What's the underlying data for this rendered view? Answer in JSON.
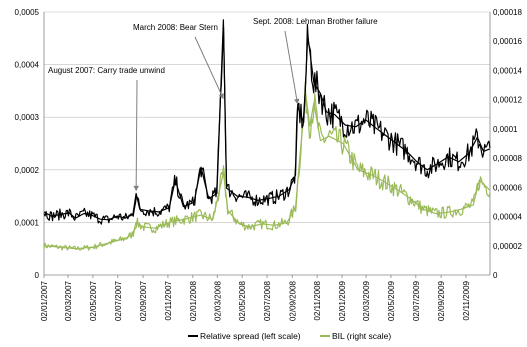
{
  "chart_data": {
    "type": "line",
    "x_format": "dd/mm/yyyy",
    "x_start": "2007-01-02",
    "x_end": "2009-12-31",
    "x_tick_labels": [
      "02/01/2007",
      "02/03/2007",
      "02/05/2007",
      "02/07/2007",
      "02/09/2007",
      "02/11/2007",
      "02/01/2008",
      "02/03/2008",
      "02/05/2008",
      "02/07/2008",
      "02/09/2008",
      "02/11/2008",
      "02/01/2009",
      "02/03/2009",
      "02/05/2009",
      "02/07/2009",
      "02/09/2009",
      "02/11/2009"
    ],
    "y_left": {
      "min": 0,
      "max": 0.0005,
      "tick_labels": [
        "0",
        "0,0001",
        "0,0002",
        "0,0003",
        "0,0004",
        "0,0005"
      ]
    },
    "y_right": {
      "min": 0,
      "max": 0.00018,
      "tick_labels": [
        "0",
        "0,00002",
        "0,00004",
        "0,00006",
        "0,00008",
        "0,0001",
        "0,00012",
        "0,00014",
        "0,00016",
        "0,00018"
      ]
    },
    "grid": "horizontal",
    "legend_position": "bottom",
    "series": [
      {
        "name": "Relative spread (left scale)",
        "axis": "left",
        "color": "#000000",
        "points": [
          [
            "2007-01-02",
            0.00012
          ],
          [
            "2007-01-20",
            0.000112
          ],
          [
            "2007-02-10",
            0.000115
          ],
          [
            "2007-03-05",
            0.000118
          ],
          [
            "2007-03-20",
            0.000108
          ],
          [
            "2007-04-10",
            0.000117
          ],
          [
            "2007-05-01",
            0.000113
          ],
          [
            "2007-05-20",
            0.000106
          ],
          [
            "2007-06-10",
            0.000105
          ],
          [
            "2007-07-01",
            0.000112
          ],
          [
            "2007-07-20",
            0.000108
          ],
          [
            "2007-08-08",
            0.000115
          ],
          [
            "2007-08-16",
            0.000155
          ],
          [
            "2007-08-25",
            0.000125
          ],
          [
            "2007-09-15",
            0.000122
          ],
          [
            "2007-10-10",
            0.00012
          ],
          [
            "2007-11-05",
            0.000128
          ],
          [
            "2007-11-20",
            0.00018
          ],
          [
            "2007-12-10",
            0.00013
          ],
          [
            "2008-01-05",
            0.000138
          ],
          [
            "2008-01-22",
            0.000205
          ],
          [
            "2008-02-10",
            0.000145
          ],
          [
            "2008-03-01",
            0.000155
          ],
          [
            "2008-03-17",
            0.000485
          ],
          [
            "2008-03-25",
            0.000165
          ],
          [
            "2008-04-20",
            0.00015
          ],
          [
            "2008-05-15",
            0.000148
          ],
          [
            "2008-06-10",
            0.000142
          ],
          [
            "2008-07-05",
            0.000145
          ],
          [
            "2008-08-01",
            0.00015
          ],
          [
            "2008-08-25",
            0.000162
          ],
          [
            "2008-09-10",
            0.00019
          ],
          [
            "2008-09-15",
            0.00032
          ],
          [
            "2008-09-30",
            0.00029
          ],
          [
            "2008-10-10",
            0.000455
          ],
          [
            "2008-10-25",
            0.000365
          ],
          [
            "2008-11-10",
            0.000345
          ],
          [
            "2008-11-25",
            0.00031
          ],
          [
            "2008-12-15",
            0.000305
          ],
          [
            "2009-01-10",
            0.000285
          ],
          [
            "2009-02-05",
            0.000282
          ],
          [
            "2009-03-01",
            0.000295
          ],
          [
            "2009-03-25",
            0.00028
          ],
          [
            "2009-04-20",
            0.000265
          ],
          [
            "2009-05-15",
            0.00025
          ],
          [
            "2009-06-10",
            0.000235
          ],
          [
            "2009-07-05",
            0.000215
          ],
          [
            "2009-07-30",
            0.0002
          ],
          [
            "2009-08-25",
            0.000212
          ],
          [
            "2009-09-20",
            0.000225
          ],
          [
            "2009-10-15",
            0.000215
          ],
          [
            "2009-11-10",
            0.000232
          ],
          [
            "2009-11-30",
            0.000262
          ],
          [
            "2009-12-15",
            0.000235
          ],
          [
            "2009-12-31",
            0.00024
          ]
        ]
      },
      {
        "name": "BIL (right scale)",
        "axis": "right",
        "color": "#9bbb59",
        "points": [
          [
            "2007-01-02",
            2e-05
          ],
          [
            "2007-02-10",
            1.9e-05
          ],
          [
            "2007-03-20",
            1.8e-05
          ],
          [
            "2007-05-01",
            1.9e-05
          ],
          [
            "2007-06-10",
            2.2e-05
          ],
          [
            "2007-07-20",
            2.5e-05
          ],
          [
            "2007-08-08",
            2.8e-05
          ],
          [
            "2007-08-16",
            3.6e-05
          ],
          [
            "2007-09-01",
            3.3e-05
          ],
          [
            "2007-10-01",
            3.2e-05
          ],
          [
            "2007-11-05",
            3.6e-05
          ],
          [
            "2007-12-10",
            3.8e-05
          ],
          [
            "2008-01-22",
            4.1e-05
          ],
          [
            "2008-02-20",
            3.8e-05
          ],
          [
            "2008-03-17",
            7e-05
          ],
          [
            "2008-03-28",
            4.4e-05
          ],
          [
            "2008-04-25",
            3.5e-05
          ],
          [
            "2008-05-20",
            3.3e-05
          ],
          [
            "2008-06-20",
            3.5e-05
          ],
          [
            "2008-07-20",
            3.4e-05
          ],
          [
            "2008-08-20",
            3.6e-05
          ],
          [
            "2008-09-10",
            4.6e-05
          ],
          [
            "2008-09-22",
            8.5e-05
          ],
          [
            "2008-10-05",
            0.000124
          ],
          [
            "2008-10-15",
            0.000102
          ],
          [
            "2008-10-25",
            0.000118
          ],
          [
            "2008-11-10",
            9.2e-05
          ],
          [
            "2008-12-01",
            9.5e-05
          ],
          [
            "2009-01-05",
            9e-05
          ],
          [
            "2009-02-10",
            7.2e-05
          ],
          [
            "2009-03-20",
            6.8e-05
          ],
          [
            "2009-04-20",
            6.3e-05
          ],
          [
            "2009-05-20",
            5.8e-05
          ],
          [
            "2009-06-20",
            5.2e-05
          ],
          [
            "2009-07-20",
            4.5e-05
          ],
          [
            "2009-08-20",
            4.2e-05
          ],
          [
            "2009-09-20",
            4.3e-05
          ],
          [
            "2009-10-20",
            4.5e-05
          ],
          [
            "2009-11-20",
            4.8e-05
          ],
          [
            "2009-12-05",
            6.5e-05
          ],
          [
            "2009-12-31",
            5.8e-05
          ]
        ]
      }
    ],
    "annotations": [
      {
        "text": "August 2007: Carry trade unwind",
        "x": "2007-08-16",
        "y": 0.00016
      },
      {
        "text": "March 2008: Bear Stern",
        "x": "2008-03-17",
        "y": 0.000335
      },
      {
        "text": "Sept. 2008: Lehman Brother failure",
        "x": "2008-09-15",
        "y": 0.000325
      }
    ]
  }
}
